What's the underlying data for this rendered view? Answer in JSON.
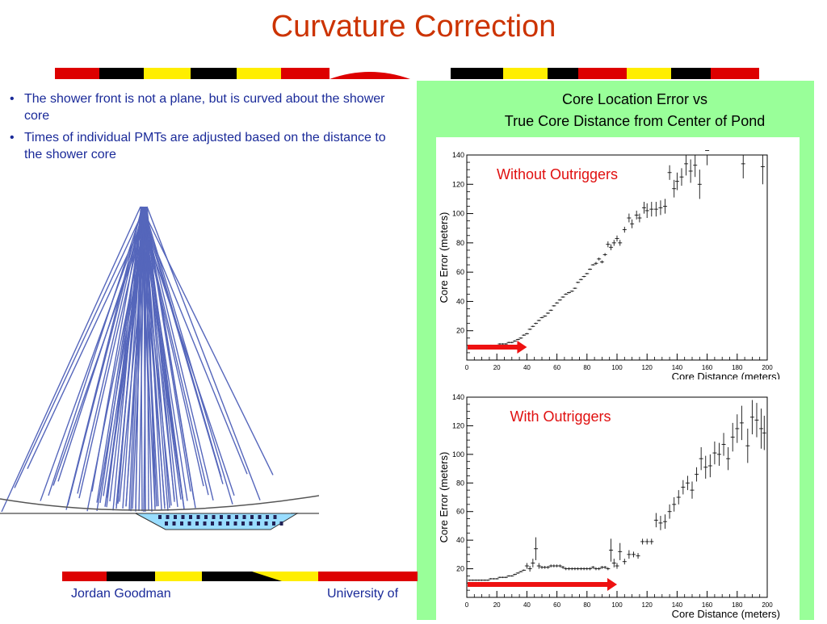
{
  "slide": {
    "title": "Curvature Correction",
    "bullets": [
      "The shower front is not a plane, but is curved about the shower core",
      "Times of individual PMTs are adjusted based on the distance to the shower core"
    ],
    "panel_title_line1": "Core Location Error vs",
    "panel_title_line2": "True Core Distance from Center of Pond",
    "footer_author": "Jordan Goodman",
    "footer_university": "University of"
  },
  "colors": {
    "title": "#cc3300",
    "text_blue": "#1a2a99",
    "panel_green": "#99ff99",
    "annotation_red": "#e01010",
    "arrow_red": "#ee1111",
    "shower_lines": "#5566bb",
    "pond": "#99ddff",
    "md_yellow": "#ffee00",
    "md_red": "#dd0000",
    "md_black": "#000000"
  },
  "chart_data": [
    {
      "type": "scatter",
      "annotation": "Without Outriggers",
      "xlabel": "Core Distance (meters)",
      "ylabel": "Core Error (meters)",
      "xlim": [
        0,
        200
      ],
      "ylim": [
        0,
        140
      ],
      "xticks": [
        0,
        20,
        40,
        60,
        80,
        100,
        120,
        140,
        160,
        180,
        200
      ],
      "yticks": [
        20,
        40,
        60,
        80,
        100,
        120,
        140
      ],
      "arrow_to_x": 40,
      "points": [
        [
          2,
          9,
          0.5
        ],
        [
          4,
          9,
          0.5
        ],
        [
          6,
          9,
          0.5
        ],
        [
          8,
          9,
          0.5
        ],
        [
          10,
          9,
          0.5
        ],
        [
          12,
          9,
          0.5
        ],
        [
          14,
          9,
          0.5
        ],
        [
          16,
          10,
          0.5
        ],
        [
          18,
          10,
          0.5
        ],
        [
          20,
          10,
          0.5
        ],
        [
          22,
          11,
          0.5
        ],
        [
          24,
          11,
          0.5
        ],
        [
          26,
          11,
          0.5
        ],
        [
          28,
          12,
          0.5
        ],
        [
          30,
          12,
          0.5
        ],
        [
          32,
          13,
          0.5
        ],
        [
          34,
          14,
          0.5
        ],
        [
          36,
          15,
          0.5
        ],
        [
          38,
          17,
          0.5
        ],
        [
          40,
          18,
          0.5
        ],
        [
          42,
          21,
          0.5
        ],
        [
          44,
          23,
          0.5
        ],
        [
          46,
          25,
          0.5
        ],
        [
          48,
          27,
          0.5
        ],
        [
          50,
          29,
          0.5
        ],
        [
          52,
          30,
          0.5
        ],
        [
          54,
          32,
          0.5
        ],
        [
          56,
          34,
          0.5
        ],
        [
          58,
          37,
          0.5
        ],
        [
          60,
          39,
          0.5
        ],
        [
          62,
          41,
          0.5
        ],
        [
          64,
          43,
          0.5
        ],
        [
          66,
          45,
          0.5
        ],
        [
          68,
          46,
          0.5
        ],
        [
          70,
          47,
          0.5
        ],
        [
          72,
          49,
          0.5
        ],
        [
          74,
          53,
          0.5
        ],
        [
          76,
          55,
          0.5
        ],
        [
          78,
          57,
          0.5
        ],
        [
          80,
          59,
          0.5
        ],
        [
          82,
          62,
          0.5
        ],
        [
          84,
          65,
          0.5
        ],
        [
          86,
          66,
          1
        ],
        [
          88,
          69,
          1
        ],
        [
          90,
          67,
          1
        ],
        [
          92,
          72,
          1
        ],
        [
          94,
          79,
          2
        ],
        [
          96,
          77,
          2
        ],
        [
          98,
          80,
          2
        ],
        [
          100,
          83,
          2
        ],
        [
          102,
          80,
          2
        ],
        [
          105,
          89,
          2
        ],
        [
          108,
          97,
          3
        ],
        [
          110,
          93,
          3
        ],
        [
          113,
          99,
          3
        ],
        [
          115,
          97,
          3
        ],
        [
          118,
          104,
          4
        ],
        [
          120,
          102,
          5
        ],
        [
          123,
          103,
          5
        ],
        [
          126,
          103,
          5
        ],
        [
          129,
          104,
          5
        ],
        [
          132,
          105,
          5
        ],
        [
          135,
          128,
          5
        ],
        [
          138,
          117,
          6
        ],
        [
          140,
          122,
          6
        ],
        [
          143,
          125,
          6
        ],
        [
          146,
          134,
          8
        ],
        [
          149,
          129,
          8
        ],
        [
          152,
          133,
          8
        ],
        [
          155,
          120,
          10
        ],
        [
          160,
          143,
          10
        ],
        [
          184,
          134,
          10
        ],
        [
          197,
          132,
          12
        ]
      ]
    },
    {
      "type": "scatter",
      "annotation": "With Outriggers",
      "xlabel": "Core Distance (meters)",
      "ylabel": "Core Error (meters)",
      "xlim": [
        0,
        200
      ],
      "ylim": [
        0,
        140
      ],
      "xticks": [
        0,
        20,
        40,
        60,
        80,
        100,
        120,
        140,
        160,
        180,
        200
      ],
      "yticks": [
        20,
        40,
        60,
        80,
        100,
        120,
        140
      ],
      "arrow_to_x": 100,
      "points": [
        [
          2,
          12,
          0.5
        ],
        [
          4,
          12,
          0.5
        ],
        [
          6,
          12,
          0.5
        ],
        [
          8,
          12,
          0.5
        ],
        [
          10,
          12,
          0.5
        ],
        [
          12,
          12,
          0.5
        ],
        [
          14,
          12,
          0.5
        ],
        [
          16,
          13,
          0.5
        ],
        [
          18,
          13,
          0.5
        ],
        [
          20,
          13,
          0.5
        ],
        [
          22,
          14,
          0.5
        ],
        [
          24,
          14,
          0.5
        ],
        [
          26,
          14,
          0.5
        ],
        [
          28,
          15,
          0.5
        ],
        [
          30,
          15,
          0.5
        ],
        [
          32,
          16,
          0.5
        ],
        [
          34,
          17,
          0.5
        ],
        [
          36,
          18,
          0.5
        ],
        [
          38,
          19,
          0.5
        ],
        [
          40,
          22,
          2
        ],
        [
          42,
          20,
          2
        ],
        [
          44,
          24,
          3
        ],
        [
          46,
          34,
          8
        ],
        [
          48,
          22,
          2
        ],
        [
          50,
          21,
          1
        ],
        [
          52,
          21,
          1
        ],
        [
          54,
          21,
          1
        ],
        [
          56,
          22,
          1
        ],
        [
          58,
          22,
          1
        ],
        [
          60,
          22,
          1
        ],
        [
          62,
          22,
          1
        ],
        [
          64,
          21,
          1
        ],
        [
          66,
          20,
          1
        ],
        [
          68,
          20,
          1
        ],
        [
          70,
          20,
          1
        ],
        [
          72,
          20,
          1
        ],
        [
          74,
          20,
          1
        ],
        [
          76,
          20,
          1
        ],
        [
          78,
          20,
          1
        ],
        [
          80,
          20,
          1
        ],
        [
          82,
          20,
          1
        ],
        [
          84,
          21,
          1
        ],
        [
          86,
          20,
          1
        ],
        [
          88,
          20,
          1
        ],
        [
          90,
          21,
          1
        ],
        [
          92,
          21,
          1
        ],
        [
          94,
          20,
          1
        ],
        [
          96,
          33,
          8
        ],
        [
          98,
          24,
          3
        ],
        [
          100,
          22,
          2
        ],
        [
          102,
          32,
          6
        ],
        [
          105,
          25,
          2
        ],
        [
          108,
          30,
          3
        ],
        [
          111,
          30,
          2
        ],
        [
          114,
          29,
          2
        ],
        [
          117,
          39,
          2
        ],
        [
          120,
          39,
          2
        ],
        [
          123,
          39,
          2
        ],
        [
          126,
          54,
          5
        ],
        [
          129,
          52,
          5
        ],
        [
          132,
          53,
          5
        ],
        [
          135,
          60,
          5
        ],
        [
          138,
          65,
          5
        ],
        [
          141,
          70,
          5
        ],
        [
          144,
          77,
          5
        ],
        [
          147,
          80,
          5
        ],
        [
          150,
          75,
          6
        ],
        [
          153,
          86,
          5
        ],
        [
          156,
          97,
          8
        ],
        [
          159,
          91,
          8
        ],
        [
          162,
          92,
          8
        ],
        [
          165,
          101,
          8
        ],
        [
          168,
          100,
          8
        ],
        [
          171,
          107,
          8
        ],
        [
          174,
          97,
          8
        ],
        [
          177,
          112,
          10
        ],
        [
          180,
          118,
          10
        ],
        [
          183,
          122,
          12
        ],
        [
          187,
          106,
          12
        ],
        [
          190,
          126,
          12
        ],
        [
          193,
          124,
          12
        ],
        [
          196,
          118,
          14
        ],
        [
          198,
          115,
          12
        ]
      ]
    }
  ]
}
